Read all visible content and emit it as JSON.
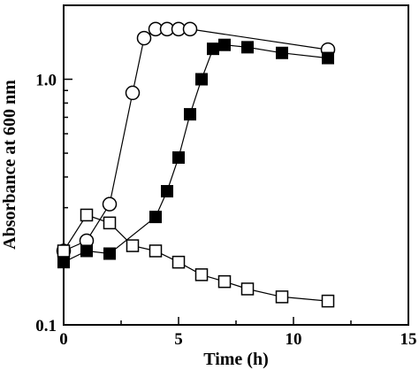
{
  "chart_data": {
    "type": "scatter",
    "xlabel": "Time (h)",
    "ylabel": "Absorbance at 600 nm",
    "yscale": "log",
    "xlim": [
      0,
      15
    ],
    "ylim": [
      0.1,
      2.0
    ],
    "xticks": [
      {
        "value": 0,
        "label": "0"
      },
      {
        "value": 5,
        "label": "5"
      },
      {
        "value": 10,
        "label": "10"
      },
      {
        "value": 15,
        "label": "15"
      }
    ],
    "yticks": [
      {
        "value": 0.1,
        "label": "0.1"
      },
      {
        "value": 1.0,
        "label": "1.0"
      }
    ],
    "grid": false,
    "legend": "none",
    "series": [
      {
        "marker": "open-circle",
        "x": [
          0,
          1,
          2,
          3,
          3.5,
          4,
          4.5,
          5,
          5.5,
          11.5
        ],
        "y": [
          0.2,
          0.22,
          0.31,
          0.88,
          1.47,
          1.6,
          1.6,
          1.6,
          1.6,
          1.32
        ]
      },
      {
        "marker": "filled-square",
        "x": [
          0,
          1,
          2,
          4,
          4.5,
          5,
          5.5,
          6,
          6.5,
          7,
          8,
          9.5,
          11.5
        ],
        "y": [
          0.18,
          0.2,
          0.195,
          0.275,
          0.35,
          0.48,
          0.72,
          1.0,
          1.33,
          1.38,
          1.35,
          1.28,
          1.22
        ]
      },
      {
        "marker": "open-square",
        "x": [
          0,
          1,
          2,
          3,
          4,
          5,
          6,
          7,
          8,
          9.5,
          11.5
        ],
        "y": [
          0.2,
          0.28,
          0.26,
          0.21,
          0.2,
          0.18,
          0.16,
          0.15,
          0.14,
          0.13,
          0.125
        ]
      }
    ]
  }
}
